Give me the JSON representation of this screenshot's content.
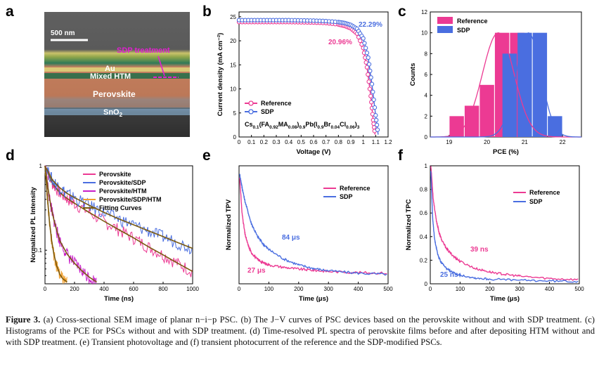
{
  "panel_labels": [
    "a",
    "b",
    "c",
    "d",
    "e",
    "f"
  ],
  "sem": {
    "scale_bar": "500 nm",
    "sdp_label": "SDP treatment",
    "layers": [
      "Au",
      "Mixed HTM",
      "Perovskite",
      "SnO2"
    ]
  },
  "caption": {
    "label": "Figure 3.",
    "text": "(a) Cross-sectional SEM image of planar n−i−p PSC. (b) The J−V curves of PSC devices based on the perovskite without and with SDP treatment. (c) Histograms of the PCE for PSCs without and with SDP treatment. (d) Time-resolved PL spectra of perovskite films before and after depositing HTM without and with SDP treatment. (e) Transient photovoltage and (f) transient photocurrent of the reference and the SDP-modified PSCs."
  },
  "colors": {
    "reference": "#ec3a93",
    "sdp": "#4a6ee0",
    "htm": "#c81ec8",
    "sdp_htm": "#f0a030",
    "fit": "#7a5a10"
  },
  "chart_data": [
    {
      "panel": "b",
      "type": "line",
      "xlabel": "Voltage (V)",
      "ylabel": "Current density (mA cm⁻²)",
      "xlim": [
        0,
        1.2
      ],
      "ylim": [
        0,
        26
      ],
      "xticks": [
        0.0,
        0.1,
        0.2,
        0.3,
        0.4,
        0.5,
        0.6,
        0.7,
        0.8,
        0.9,
        1.0,
        1.1,
        1.2
      ],
      "yticks": [
        0,
        5,
        10,
        15,
        20,
        25
      ],
      "annotations": [
        "20.96%",
        "22.29%"
      ],
      "formula": "Cs0.1(FA0.92MA0.08)0.9Pb(I0.9Br0.04Cl0.06)3",
      "series": [
        {
          "name": "Reference",
          "color": "#ec3a93",
          "jsc": 23.9,
          "voc": 1.095,
          "x": [
            0,
            0.1,
            0.2,
            0.3,
            0.4,
            0.5,
            0.6,
            0.7,
            0.8,
            0.85,
            0.9,
            0.95,
            1.0,
            1.03,
            1.06,
            1.08,
            1.095
          ],
          "y": [
            23.9,
            23.9,
            23.9,
            23.9,
            23.9,
            23.85,
            23.8,
            23.7,
            23.4,
            23.1,
            22.6,
            21.5,
            18.5,
            14.5,
            8.5,
            3.5,
            0.5
          ]
        },
        {
          "name": "SDP",
          "color": "#4a6ee0",
          "jsc": 24.3,
          "voc": 1.12,
          "x": [
            0,
            0.1,
            0.2,
            0.3,
            0.4,
            0.5,
            0.6,
            0.7,
            0.8,
            0.85,
            0.9,
            0.95,
            1.0,
            1.04,
            1.07,
            1.1,
            1.12
          ],
          "y": [
            24.3,
            24.3,
            24.3,
            24.3,
            24.3,
            24.25,
            24.2,
            24.1,
            23.9,
            23.7,
            23.3,
            22.5,
            20.5,
            16.5,
            11.0,
            4.5,
            0.5
          ]
        }
      ]
    },
    {
      "panel": "c",
      "type": "bar",
      "xlabel": "PCE (%)",
      "ylabel": "Counts",
      "xlim": [
        18.5,
        22.5
      ],
      "ylim": [
        0,
        12
      ],
      "xticks": [
        19,
        20,
        21,
        22
      ],
      "yticks": [
        0,
        2,
        4,
        6,
        8,
        10,
        12
      ],
      "series": [
        {
          "name": "Reference",
          "color": "#ec3a93",
          "x": [
            19.2,
            19.6,
            20.0,
            20.4,
            20.8
          ],
          "values": [
            2,
            3,
            5,
            10,
            10
          ]
        },
        {
          "name": "SDP",
          "color": "#4a6ee0",
          "x": [
            20.6,
            21.0,
            21.4,
            21.8
          ],
          "values": [
            8,
            10,
            10,
            2
          ]
        }
      ],
      "fits": [
        {
          "series": "Reference",
          "mean": 20.3,
          "sd": 0.42,
          "peak": 10
        },
        {
          "series": "SDP",
          "mean": 21.1,
          "sd": 0.33,
          "peak": 10
        }
      ]
    },
    {
      "panel": "d",
      "type": "line",
      "xlabel": "Time (ns)",
      "ylabel": "Normalized PL Intensity",
      "xlim": [
        0,
        1000
      ],
      "ylim": [
        0.04,
        1.0
      ],
      "yscale": "log",
      "xticks": [
        0,
        200,
        400,
        600,
        800,
        1000
      ],
      "yticks": [
        0.1,
        1
      ],
      "series": [
        {
          "name": "Perovskite",
          "color": "#ec3a93",
          "t": [
            0,
            50,
            100,
            150,
            200,
            300,
            400,
            500,
            600,
            700,
            800,
            900,
            1000
          ],
          "y": [
            1.0,
            0.62,
            0.48,
            0.41,
            0.36,
            0.28,
            0.22,
            0.175,
            0.14,
            0.11,
            0.088,
            0.07,
            0.056
          ]
        },
        {
          "name": "Perovskite/SDP",
          "color": "#4a6ee0",
          "t": [
            0,
            50,
            100,
            150,
            200,
            300,
            400,
            500,
            600,
            700,
            800,
            900,
            1000
          ],
          "y": [
            1.0,
            0.68,
            0.55,
            0.47,
            0.42,
            0.34,
            0.28,
            0.235,
            0.2,
            0.17,
            0.145,
            0.123,
            0.105
          ]
        },
        {
          "name": "Perovskite/HTM",
          "color": "#c81ec8",
          "t": [
            0,
            20,
            40,
            60,
            80,
            100,
            150,
            200,
            250,
            300,
            350
          ],
          "y": [
            1.0,
            0.55,
            0.33,
            0.23,
            0.17,
            0.13,
            0.09,
            0.07,
            0.057,
            0.048,
            0.042
          ]
        },
        {
          "name": "Perovskite/SDP/HTM",
          "color": "#f0a030",
          "t": [
            0,
            15,
            30,
            45,
            60,
            80,
            100,
            120,
            150
          ],
          "y": [
            1.0,
            0.45,
            0.22,
            0.13,
            0.09,
            0.065,
            0.052,
            0.046,
            0.042
          ]
        },
        {
          "name": "Fitting Curves",
          "color": "#7a5a10"
        }
      ]
    },
    {
      "panel": "e",
      "type": "line",
      "xlabel": "Time (μs)",
      "ylabel": "Normalized TPV",
      "xlim": [
        0,
        500
      ],
      "ylim": [
        0,
        1.0
      ],
      "xticks": [
        0,
        100,
        200,
        300,
        400,
        500
      ],
      "annotations": [
        "84 μs",
        "27 μs"
      ],
      "series": [
        {
          "name": "Reference",
          "color": "#ec3a93",
          "t": [
            2,
            10,
            20,
            30,
            40,
            60,
            80,
            100,
            150,
            200,
            250,
            300,
            400,
            500
          ],
          "y": [
            0.9,
            0.6,
            0.42,
            0.33,
            0.27,
            0.21,
            0.18,
            0.16,
            0.14,
            0.125,
            0.115,
            0.105,
            0.095,
            0.09
          ]
        },
        {
          "name": "SDP",
          "color": "#4a6ee0",
          "t": [
            2,
            10,
            20,
            40,
            60,
            80,
            100,
            150,
            200,
            250,
            300,
            400,
            500
          ],
          "y": [
            0.93,
            0.82,
            0.7,
            0.52,
            0.41,
            0.34,
            0.29,
            0.21,
            0.16,
            0.13,
            0.11,
            0.09,
            0.08
          ]
        }
      ]
    },
    {
      "panel": "f",
      "type": "line",
      "xlabel": "Time (μs)",
      "ylabel": "Normalized TPC",
      "xlim": [
        0,
        500
      ],
      "ylim": [
        0,
        1.0
      ],
      "xticks": [
        0,
        100,
        200,
        300,
        400,
        500
      ],
      "yticks": [
        0.0,
        0.2,
        0.4,
        0.6,
        0.8,
        1.0
      ],
      "annotations": [
        "39 ns",
        "25 ns"
      ],
      "series": [
        {
          "name": "Reference",
          "color": "#ec3a93",
          "t": [
            2,
            10,
            20,
            30,
            40,
            60,
            80,
            100,
            150,
            200,
            250,
            300,
            400,
            500
          ],
          "y": [
            1.0,
            0.72,
            0.54,
            0.43,
            0.36,
            0.28,
            0.23,
            0.19,
            0.13,
            0.1,
            0.08,
            0.065,
            0.045,
            0.035
          ]
        },
        {
          "name": "SDP",
          "color": "#4a6ee0",
          "t": [
            2,
            8,
            15,
            25,
            35,
            50,
            70,
            100,
            150,
            200,
            300,
            400,
            500
          ],
          "y": [
            0.95,
            0.55,
            0.37,
            0.25,
            0.19,
            0.14,
            0.1,
            0.075,
            0.05,
            0.04,
            0.03,
            0.025,
            0.02
          ]
        }
      ]
    }
  ]
}
